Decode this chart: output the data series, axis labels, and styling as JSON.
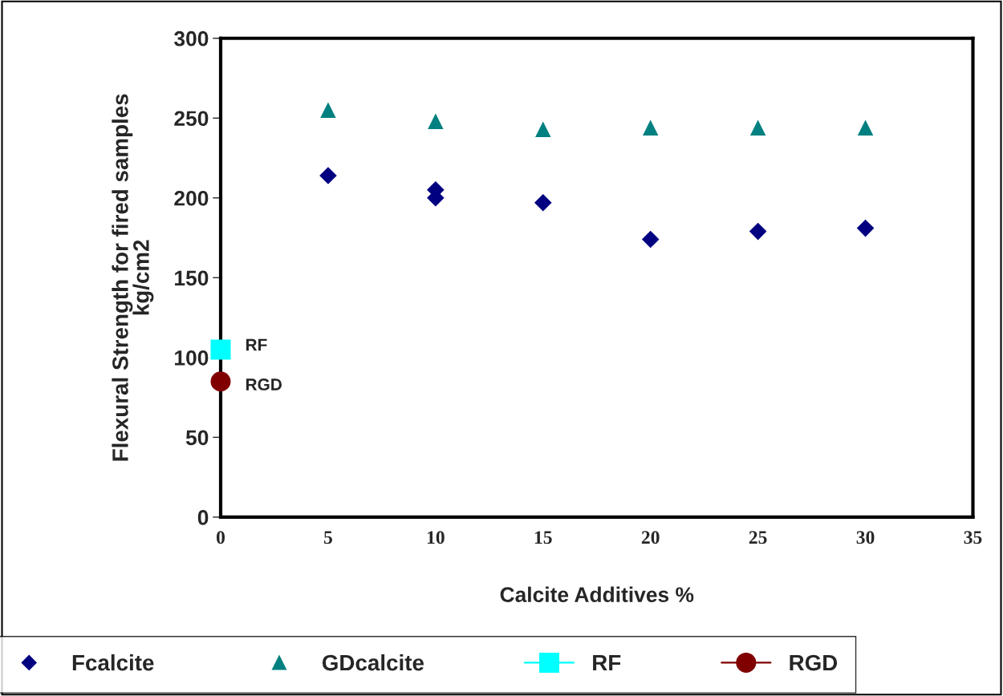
{
  "chart_data": {
    "type": "scatter",
    "xlabel": "Calcite Additives %",
    "ylabel": "Flexural Strength for fired samples\nkg/cm2",
    "xlim": [
      0,
      35
    ],
    "xticks": [
      0,
      5,
      10,
      15,
      20,
      25,
      30,
      35
    ],
    "ylim": [
      0,
      300
    ],
    "yticks": [
      0,
      50,
      100,
      150,
      200,
      250,
      300
    ],
    "grid": false,
    "legend": "bottom",
    "series": [
      {
        "name": "Fcalcite",
        "color": "#000080",
        "marker": "diamond",
        "x": [
          5,
          10,
          10,
          15,
          20,
          25,
          30
        ],
        "values": [
          214,
          205,
          200,
          197,
          174,
          179,
          181
        ]
      },
      {
        "name": "GDcalcite",
        "color": "#008080",
        "marker": "triangle",
        "x": [
          5,
          10,
          15,
          20,
          25,
          30
        ],
        "values": [
          255,
          248,
          243,
          244,
          244,
          244
        ]
      },
      {
        "name": "RF",
        "type": "line",
        "color": "#00ffff",
        "marker": "square",
        "x": [
          0
        ],
        "values": [
          105
        ]
      },
      {
        "name": "RGD",
        "type": "line",
        "color": "#800000",
        "marker": "circle",
        "x": [
          0
        ],
        "values": [
          85
        ]
      }
    ],
    "annotations": [
      {
        "text": "RF",
        "x": 0,
        "y": 105
      },
      {
        "text": "RGD",
        "x": 0,
        "y": 85
      }
    ]
  }
}
